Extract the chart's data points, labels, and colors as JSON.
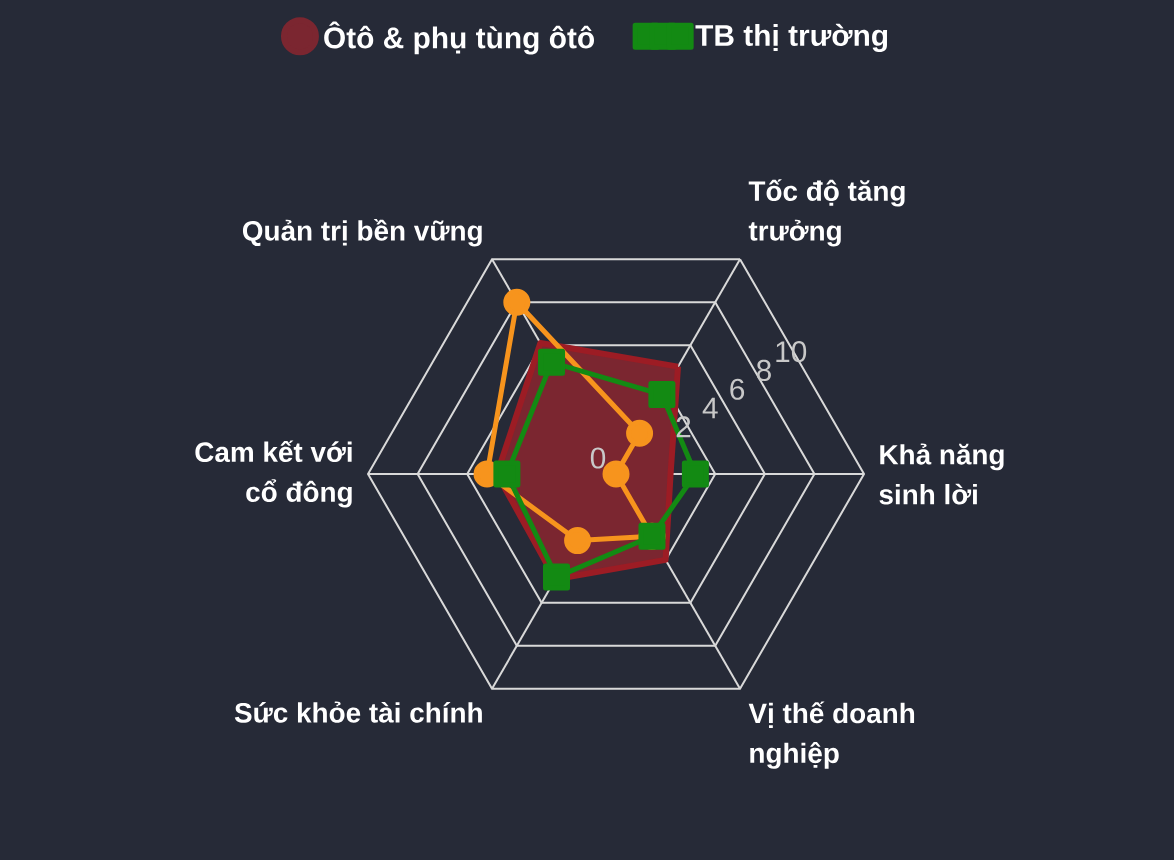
{
  "chart_data": {
    "type": "radar",
    "categories": [
      "Tốc độ tăng trưởng",
      "Khả năng sinh lời",
      "Vị thế doanh nghiệp",
      "Sức khỏe tài chính",
      "Cam kết với cổ đông",
      "Quản trị bền vững"
    ],
    "ylim": [
      0,
      10
    ],
    "yticks": [
      0,
      2,
      4,
      6,
      8,
      10
    ],
    "grid": true,
    "legend": "top",
    "series": [
      {
        "type": "area",
        "name": "Ôtô & phụ tùng ôtô",
        "color": "#7b2630",
        "values": [
          5.0,
          2.2,
          4.0,
          4.9,
          4.8,
          6.1
        ]
      },
      {
        "color": "#f7941d",
        "marker": "circle",
        "values": [
          1.9,
          0,
          2.9,
          3.1,
          5.2,
          8.0
        ]
      },
      {
        "name": "TB thị trường",
        "color": "#138a13",
        "marker": "square",
        "values": [
          3.7,
          3.2,
          2.9,
          4.8,
          4.4,
          5.2
        ]
      }
    ]
  }
}
